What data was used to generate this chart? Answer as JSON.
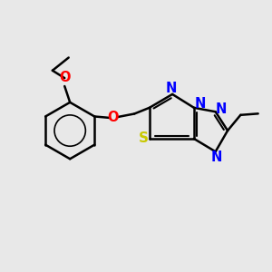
{
  "background_color": "#e8e8e8",
  "bond_color": "#000000",
  "N_color": "#0000ff",
  "S_color": "#c8c800",
  "O_color": "#ff0000",
  "line_width": 1.8,
  "font_size": 9.5,
  "fig_width": 3.0,
  "fig_height": 3.0,
  "dpi": 100,
  "xlim": [
    0,
    10
  ],
  "ylim": [
    0,
    10
  ]
}
